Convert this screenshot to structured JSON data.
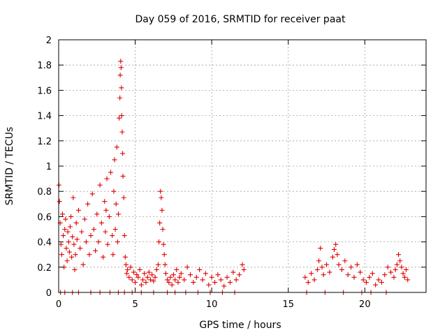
{
  "chart_data": {
    "type": "scatter",
    "title": "Day 059 of 2016, SRMTID for receiver paat",
    "xlabel": "GPS time / hours",
    "ylabel": "SRMTID / TECUs",
    "xlim": [
      0,
      24
    ],
    "ylim": [
      0,
      2
    ],
    "xticks": [
      0,
      5,
      10,
      15,
      20
    ],
    "yticks": [
      0,
      0.2,
      0.4,
      0.6,
      0.8,
      1,
      1.2,
      1.4,
      1.6,
      1.8,
      2
    ],
    "grid": true,
    "marker": "+",
    "color": "#e00000",
    "series": [
      {
        "name": "SRMTID",
        "x": [
          0.02,
          0.05,
          0.1,
          0.15,
          0.2,
          0.25,
          0.3,
          0.35,
          0.4,
          0.45,
          0.5,
          0.55,
          0.6,
          0.65,
          0.7,
          0.75,
          0.8,
          0.85,
          0.9,
          0.95,
          1.0,
          1.05,
          1.1,
          1.15,
          1.2,
          1.3,
          1.4,
          1.5,
          1.6,
          1.7,
          1.8,
          1.9,
          2.0,
          2.1,
          2.2,
          2.3,
          2.4,
          2.5,
          2.6,
          2.7,
          2.8,
          2.9,
          3.0,
          3.05,
          3.1,
          3.15,
          3.2,
          3.3,
          3.4,
          3.5,
          3.55,
          3.6,
          3.65,
          3.7,
          3.75,
          3.8,
          3.85,
          3.9,
          3.95,
          4.0,
          4.02,
          4.05,
          4.08,
          4.1,
          4.12,
          4.15,
          4.18,
          4.2,
          4.25,
          4.3,
          4.35,
          4.4,
          4.45,
          4.5,
          4.6,
          4.7,
          4.8,
          4.9,
          5.0,
          5.1,
          5.2,
          5.3,
          5.4,
          5.5,
          5.6,
          5.7,
          5.8,
          5.9,
          6.0,
          6.1,
          6.2,
          6.3,
          6.4,
          6.5,
          6.55,
          6.6,
          6.65,
          6.7,
          6.75,
          6.8,
          6.85,
          6.9,
          6.95,
          7.0,
          7.1,
          7.2,
          7.3,
          7.4,
          7.5,
          7.6,
          7.7,
          7.8,
          7.9,
          8.0,
          8.2,
          8.4,
          8.6,
          8.8,
          9.0,
          9.2,
          9.4,
          9.6,
          9.8,
          10.0,
          10.2,
          10.4,
          10.6,
          10.8,
          11.0,
          11.2,
          11.4,
          11.6,
          11.8,
          12.0,
          12.1,
          0.12,
          0.4,
          0.9,
          1.3,
          2.1,
          2.7,
          3.35,
          3.9,
          4.3,
          4.8,
          5.4,
          6.2,
          7.1,
          7.6,
          8.3,
          9.1,
          9.9,
          10.7,
          11.5,
          16.1,
          16.3,
          16.5,
          16.7,
          16.9,
          17.0,
          17.1,
          17.2,
          17.3,
          17.5,
          17.7,
          17.9,
          18.0,
          18.1,
          18.2,
          18.3,
          18.5,
          18.7,
          18.9,
          19.1,
          19.3,
          19.5,
          19.7,
          19.9,
          20.1,
          20.3,
          20.5,
          20.7,
          20.9,
          21.1,
          21.3,
          21.5,
          21.7,
          21.9,
          22.0,
          22.1,
          22.2,
          22.3,
          22.4,
          22.5,
          22.6,
          22.7,
          22.8,
          16.2,
          17.4,
          18.6,
          19.8,
          20.4,
          21.4
        ],
        "y": [
          0.85,
          0.72,
          0.55,
          0.38,
          0.3,
          0.62,
          0.45,
          0.2,
          0.5,
          0.58,
          0.35,
          0.25,
          0.48,
          0.4,
          0.32,
          0.52,
          0.6,
          0.28,
          0.44,
          0.75,
          0.38,
          0.18,
          0.3,
          0.55,
          0.42,
          0.65,
          0.35,
          0.48,
          0.22,
          0.58,
          0.4,
          0.7,
          0.3,
          0.45,
          0.78,
          0.5,
          0.33,
          0.62,
          0.4,
          0.85,
          0.55,
          0.28,
          0.72,
          0.48,
          0.65,
          0.9,
          0.38,
          0.6,
          0.95,
          0.45,
          0.3,
          0.8,
          1.05,
          0.5,
          0.7,
          1.15,
          0.4,
          0.62,
          1.38,
          1.54,
          1.72,
          1.83,
          1.78,
          1.62,
          1.4,
          1.27,
          1.1,
          0.92,
          0.75,
          0.45,
          0.28,
          0.22,
          0.15,
          0.18,
          0.12,
          0.2,
          0.1,
          0.16,
          0.08,
          0.14,
          0.12,
          0.18,
          0.06,
          0.1,
          0.15,
          0.08,
          0.12,
          0.16,
          0.1,
          0.14,
          0.09,
          0.12,
          0.18,
          0.22,
          0.4,
          0.55,
          0.8,
          0.75,
          0.65,
          0.5,
          0.38,
          0.3,
          0.22,
          0.15,
          0.1,
          0.08,
          0.12,
          0.06,
          0.14,
          0.1,
          0.18,
          0.08,
          0.12,
          0.15,
          0.1,
          0.2,
          0.14,
          0.08,
          0.12,
          0.18,
          0.1,
          0.15,
          0.06,
          0.12,
          0.08,
          0.14,
          0.1,
          0.05,
          0.12,
          0.08,
          0.16,
          0.1,
          0.14,
          0.22,
          0.18,
          0.0,
          0.0,
          0.0,
          0.0,
          0.0,
          0.0,
          0.0,
          0.0,
          0.0,
          0.0,
          0.0,
          0.0,
          0.0,
          0.0,
          0.0,
          0.0,
          0.0,
          0.0,
          0.0,
          0.12,
          0.08,
          0.15,
          0.1,
          0.18,
          0.25,
          0.35,
          0.2,
          0.14,
          0.22,
          0.16,
          0.28,
          0.34,
          0.38,
          0.3,
          0.22,
          0.18,
          0.25,
          0.14,
          0.2,
          0.12,
          0.22,
          0.16,
          0.1,
          0.08,
          0.12,
          0.15,
          0.06,
          0.1,
          0.08,
          0.14,
          0.2,
          0.16,
          0.12,
          0.18,
          0.22,
          0.3,
          0.25,
          0.2,
          0.15,
          0.12,
          0.18,
          0.1,
          0.0,
          0.0,
          0.0,
          0.0,
          0.0,
          0.0
        ]
      }
    ]
  }
}
